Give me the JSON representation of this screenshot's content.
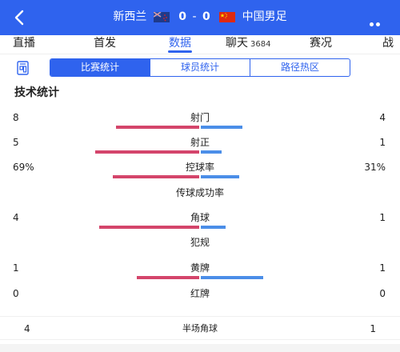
{
  "header": {
    "home_team": "新西兰",
    "home_score": "0",
    "separator": "-",
    "away_score": "0",
    "away_team": "中国男足"
  },
  "tabs": [
    {
      "label": "直播"
    },
    {
      "label": "首发"
    },
    {
      "label": "数据"
    },
    {
      "label": "聊天",
      "count": "3684"
    },
    {
      "label": "赛况"
    },
    {
      "label": "战"
    }
  ],
  "subtabs": [
    "比赛统计",
    "球员统计",
    "路径热区"
  ],
  "section_title": "技术统计",
  "stats": [
    {
      "name": "射门",
      "left": "8",
      "right": "4",
      "left_value": 8,
      "right_value": 4
    },
    {
      "name": "射正",
      "left": "5",
      "right": "1",
      "left_value": 5,
      "right_value": 1
    },
    {
      "name": "控球率",
      "left": "69%",
      "right": "31%",
      "left_value": 69,
      "right_value": 31
    },
    {
      "name": "传球成功率",
      "left": "",
      "right": ""
    },
    {
      "name": "角球",
      "left": "4",
      "right": "1",
      "left_value": 4,
      "right_value": 1
    },
    {
      "name": "犯规",
      "left": "",
      "right": ""
    },
    {
      "name": "黄牌",
      "left": "1",
      "right": "1",
      "left_value": 1,
      "right_value": 1
    },
    {
      "name": "红牌",
      "left": "0",
      "right": "0",
      "left_value": 0,
      "right_value": 0
    }
  ],
  "footer": {
    "name": "半场角球",
    "left": "4",
    "right": "1"
  },
  "colors": {
    "accent": "#2f63ee",
    "home_bar": "#d4456b",
    "away_bar": "#4b8ee8"
  }
}
